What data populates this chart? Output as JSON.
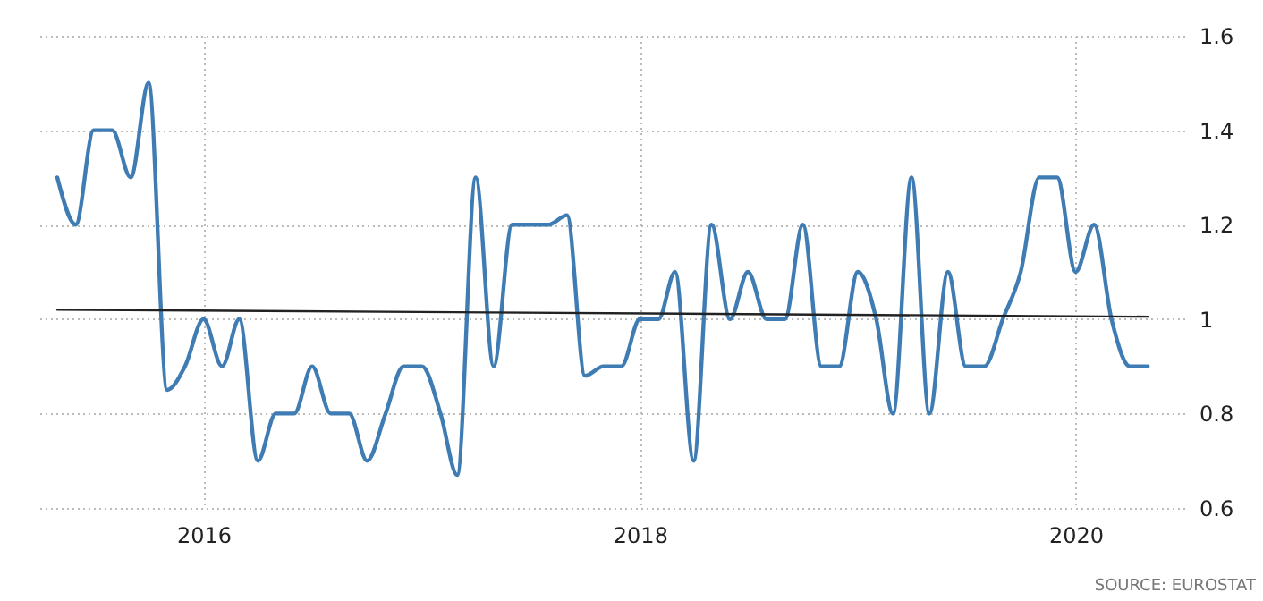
{
  "chart_data": {
    "type": "line",
    "x": [
      "2015-05",
      "2015-06",
      "2015-07",
      "2015-08",
      "2015-09",
      "2015-10",
      "2015-11",
      "2015-12",
      "2016-01",
      "2016-02",
      "2016-03",
      "2016-04",
      "2016-05",
      "2016-06",
      "2016-07",
      "2016-08",
      "2016-09",
      "2016-10",
      "2016-11",
      "2016-12",
      "2017-01",
      "2017-02",
      "2017-03",
      "2017-04",
      "2017-05",
      "2017-06",
      "2017-07",
      "2017-08",
      "2017-09",
      "2017-10",
      "2017-11",
      "2017-12",
      "2018-01",
      "2018-02",
      "2018-03",
      "2018-04",
      "2018-05",
      "2018-06",
      "2018-07",
      "2018-08",
      "2018-09",
      "2018-10",
      "2018-11",
      "2018-12",
      "2019-01",
      "2019-02",
      "2019-03",
      "2019-04",
      "2019-05",
      "2019-06",
      "2019-07",
      "2019-08",
      "2019-09",
      "2019-10",
      "2019-11",
      "2019-12",
      "2020-01",
      "2020-02",
      "2020-03",
      "2020-04",
      "2020-05"
    ],
    "series": [
      {
        "color": "#3f7cb4",
        "values": [
          1.3,
          1.2,
          1.4,
          1.4,
          1.3,
          1.5,
          0.85,
          0.9,
          1.0,
          0.9,
          1.0,
          0.7,
          0.8,
          0.8,
          0.9,
          0.8,
          0.8,
          0.7,
          0.8,
          0.9,
          0.9,
          0.8,
          0.67,
          1.3,
          0.9,
          1.2,
          1.2,
          1.2,
          1.22,
          0.88,
          0.9,
          0.9,
          1.0,
          1.0,
          1.1,
          0.7,
          1.2,
          1.0,
          1.1,
          1.0,
          1.0,
          1.2,
          0.9,
          0.9,
          1.1,
          1.0,
          0.8,
          1.3,
          0.8,
          1.1,
          0.9,
          0.9,
          1.0,
          1.1,
          1.3,
          1.3,
          1.1,
          1.2,
          1.0,
          0.9,
          0.9
        ]
      },
      {
        "type": "line",
        "color": "#222222",
        "x": [
          "2015-05",
          "2020-05"
        ],
        "values": [
          1.02,
          1.005
        ]
      }
    ],
    "xlim": [
      "2015-04",
      "2020-07"
    ],
    "xticks": [
      "2016",
      "2018",
      "2020"
    ],
    "ylim": [
      0.6,
      1.6
    ],
    "yticks": [
      0.6,
      0.8,
      1,
      1.2,
      1.4,
      1.6
    ],
    "grid": true,
    "annotations": [
      "SOURCE: EUROSTAT"
    ]
  }
}
